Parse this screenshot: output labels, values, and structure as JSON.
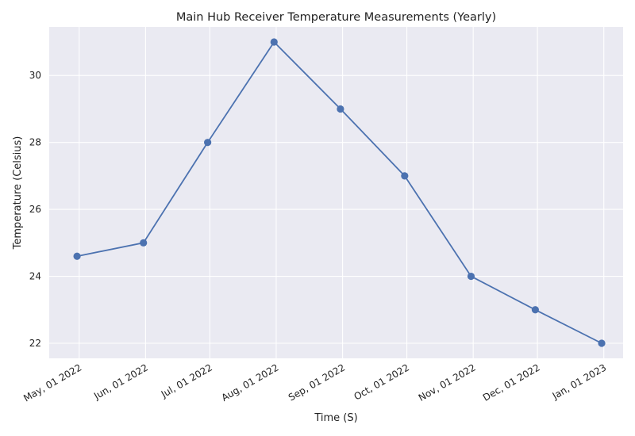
{
  "chart_data": {
    "type": "line",
    "title": "Main Hub Receiver Temperature Measurements (Yearly)",
    "xlabel": "Time (S)",
    "ylabel": "Temperature (Celsius)",
    "x_ticks": [
      "May, 01 2022",
      "Jun, 01 2022",
      "Jul, 01 2022",
      "Aug, 01 2022",
      "Sep, 01 2022",
      "Oct, 01 2022",
      "Nov, 01 2022",
      "Dec, 01 2022",
      "Jan, 01 2023"
    ],
    "y_ticks": [
      22,
      24,
      26,
      28,
      30
    ],
    "ylim": [
      21.55,
      31.45
    ],
    "xlim": [
      "2022-04-17",
      "2023-01-10"
    ],
    "grid": true,
    "background": "#eaeaf2",
    "line_color": "#4c72b0",
    "series": [
      {
        "x": [
          "2022-04-30",
          "2022-05-31",
          "2022-06-30",
          "2022-07-31",
          "2022-08-31",
          "2022-09-30",
          "2022-10-31",
          "2022-11-30",
          "2022-12-31"
        ],
        "values": [
          24.6,
          25,
          28,
          31,
          29,
          27,
          24,
          23,
          22
        ]
      }
    ]
  }
}
